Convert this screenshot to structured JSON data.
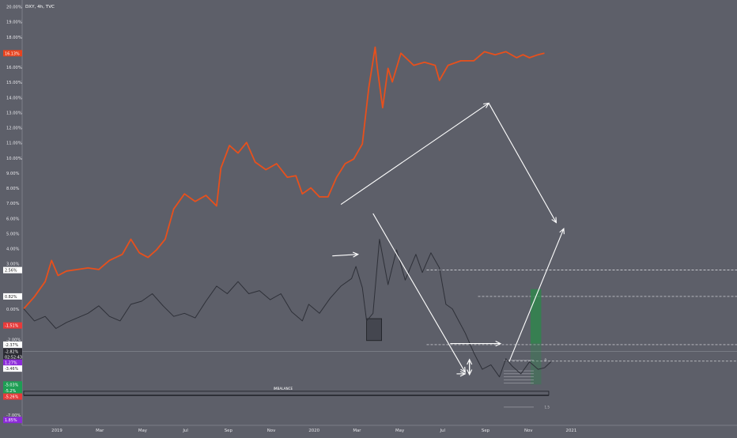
{
  "header": {
    "symbol_label": "DXY, 4h, TVC"
  },
  "chart_data": {
    "type": "line",
    "title": "DXY, 4h, TVC",
    "yunit": "%",
    "ylim": [
      -7.8,
      20.0
    ],
    "y_ticks": [
      20,
      19,
      18,
      17,
      16,
      15,
      14,
      13,
      12,
      11,
      10,
      9,
      8,
      7,
      6,
      5,
      4,
      3,
      0,
      -1,
      -2,
      -3,
      -4,
      -5,
      -7
    ],
    "y_tick_labels": [
      "20.00%",
      "19.00%",
      "18.00%",
      "17.00%",
      "16.00%",
      "15.00%",
      "14.00%",
      "13.00%",
      "12.00%",
      "11.00%",
      "10.00%",
      "9.00%",
      "8.00%",
      "7.00%",
      "6.00%",
      "5.00%",
      "4.00%",
      "3.00%",
      "0.00%",
      "-1.00%",
      "-2.00%",
      "-3.00%",
      "-4.00%",
      "-5.00%",
      "-7.00%"
    ],
    "x_ticks": [
      "2019",
      "Mar",
      "May",
      "Jul",
      "Sep",
      "Nov",
      "2020",
      "Mar",
      "May",
      "Jul",
      "Sep",
      "Nov",
      "2021"
    ],
    "x_tick_positions": [
      1.55,
      3.55,
      5.55,
      7.55,
      9.55,
      11.55,
      13.55,
      15.55,
      17.55,
      19.55,
      21.55,
      23.55,
      25.55
    ],
    "xlim": [
      0,
      33.5
    ],
    "price_badges": [
      {
        "label": "16.13%",
        "y": 16.9,
        "color": "#e8431e"
      },
      {
        "label": "2.56%",
        "y": 2.56,
        "color": "#ffffff"
      },
      {
        "label": "0.82%",
        "y": 0.82,
        "color": "#ffffff"
      },
      {
        "label": "-1.51%",
        "y": -1.1,
        "color": "#e83a3a"
      },
      {
        "label": "-2.37%",
        "y": -2.37,
        "color": "#ffffff"
      },
      {
        "label": "-2.82%",
        "y": -2.82,
        "color": "#2b2b33"
      },
      {
        "label": "02:52:43",
        "y": -3.18,
        "color": "#2b2b33"
      },
      {
        "label": "1.27%",
        "y": -3.55,
        "color": "#8c2bd9"
      },
      {
        "label": "-3.46%",
        "y": -3.95,
        "color": "#ffffff"
      },
      {
        "label": "-5.03%",
        "y": -5.0,
        "color": "#1e9e54"
      },
      {
        "label": "-5.2%",
        "y": -5.4,
        "color": "#1e9e54"
      },
      {
        "label": "-5.26%",
        "y": -5.8,
        "color": "#e83a3a"
      },
      {
        "label": "1.85%",
        "y": -7.35,
        "color": "#8c2bd9"
      }
    ],
    "series": [
      {
        "color": "#e8501c",
        "points": [
          [
            0.0,
            0.0
          ],
          [
            0.5,
            0.8
          ],
          [
            1.0,
            1.8
          ],
          [
            1.3,
            3.2
          ],
          [
            1.6,
            2.2
          ],
          [
            2.0,
            2.5
          ],
          [
            2.5,
            2.6
          ],
          [
            3.0,
            2.7
          ],
          [
            3.5,
            2.6
          ],
          [
            4.0,
            3.2
          ],
          [
            4.6,
            3.6
          ],
          [
            5.0,
            4.6
          ],
          [
            5.4,
            3.7
          ],
          [
            5.8,
            3.4
          ],
          [
            6.2,
            3.9
          ],
          [
            6.6,
            4.6
          ],
          [
            7.0,
            6.6
          ],
          [
            7.5,
            7.6
          ],
          [
            8.0,
            7.1
          ],
          [
            8.5,
            7.5
          ],
          [
            9.0,
            6.8
          ],
          [
            9.2,
            9.3
          ],
          [
            9.6,
            10.8
          ],
          [
            10.0,
            10.3
          ],
          [
            10.4,
            11.0
          ],
          [
            10.8,
            9.7
          ],
          [
            11.3,
            9.2
          ],
          [
            11.8,
            9.6
          ],
          [
            12.3,
            8.7
          ],
          [
            12.7,
            8.8
          ],
          [
            13.0,
            7.6
          ],
          [
            13.4,
            8.0
          ],
          [
            13.8,
            7.4
          ],
          [
            14.2,
            7.4
          ],
          [
            14.6,
            8.7
          ],
          [
            15.0,
            9.6
          ],
          [
            15.4,
            9.9
          ],
          [
            15.8,
            10.9
          ],
          [
            16.1,
            14.6
          ],
          [
            16.4,
            17.3
          ],
          [
            16.5,
            15.9
          ],
          [
            16.75,
            13.3
          ],
          [
            17.0,
            15.9
          ],
          [
            17.2,
            15.0
          ],
          [
            17.6,
            16.9
          ],
          [
            18.2,
            16.1
          ],
          [
            18.7,
            16.3
          ],
          [
            19.2,
            16.1
          ],
          [
            19.4,
            15.1
          ],
          [
            19.8,
            16.1
          ],
          [
            20.4,
            16.4
          ],
          [
            21.0,
            16.4
          ],
          [
            21.5,
            17.0
          ],
          [
            22.0,
            16.8
          ],
          [
            22.5,
            17.0
          ],
          [
            23.0,
            16.6
          ],
          [
            23.3,
            16.8
          ],
          [
            23.6,
            16.6
          ],
          [
            24.0,
            16.8
          ],
          [
            24.3,
            16.9
          ]
        ]
      },
      {
        "color": "#2e3038",
        "points": [
          [
            0.0,
            0.0
          ],
          [
            0.5,
            -0.8
          ],
          [
            1.0,
            -0.5
          ],
          [
            1.5,
            -1.3
          ],
          [
            2.0,
            -0.9
          ],
          [
            2.5,
            -0.6
          ],
          [
            3.0,
            -0.3
          ],
          [
            3.5,
            0.2
          ],
          [
            4.0,
            -0.5
          ],
          [
            4.5,
            -0.8
          ],
          [
            5.0,
            0.3
          ],
          [
            5.5,
            0.5
          ],
          [
            6.0,
            1.0
          ],
          [
            6.5,
            0.2
          ],
          [
            7.0,
            -0.5
          ],
          [
            7.5,
            -0.3
          ],
          [
            8.0,
            -0.6
          ],
          [
            8.5,
            0.5
          ],
          [
            9.0,
            1.5
          ],
          [
            9.5,
            1.0
          ],
          [
            10.0,
            1.8
          ],
          [
            10.5,
            1.0
          ],
          [
            11.0,
            1.2
          ],
          [
            11.5,
            0.6
          ],
          [
            12.0,
            1.0
          ],
          [
            12.5,
            -0.2
          ],
          [
            13.0,
            -0.8
          ],
          [
            13.3,
            0.3
          ],
          [
            13.8,
            -0.3
          ],
          [
            14.3,
            0.7
          ],
          [
            14.8,
            1.5
          ],
          [
            15.3,
            2.0
          ],
          [
            15.5,
            2.8
          ],
          [
            15.8,
            1.4
          ],
          [
            16.0,
            -0.8
          ],
          [
            16.3,
            -0.3
          ],
          [
            16.6,
            4.6
          ],
          [
            17.0,
            1.6
          ],
          [
            17.4,
            3.9
          ],
          [
            17.8,
            1.9
          ],
          [
            18.3,
            3.6
          ],
          [
            18.6,
            2.4
          ],
          [
            19.0,
            3.7
          ],
          [
            19.4,
            2.7
          ],
          [
            19.7,
            0.3
          ],
          [
            20.0,
            0.0
          ],
          [
            20.3,
            -0.8
          ],
          [
            20.6,
            -1.6
          ],
          [
            21.0,
            -2.9
          ],
          [
            21.4,
            -4.0
          ],
          [
            21.8,
            -3.7
          ],
          [
            22.2,
            -4.5
          ],
          [
            22.5,
            -3.3
          ],
          [
            22.8,
            -3.8
          ],
          [
            23.2,
            -4.3
          ],
          [
            23.6,
            -3.5
          ],
          [
            24.0,
            -4.0
          ],
          [
            24.3,
            -3.9
          ],
          [
            24.6,
            -3.5
          ]
        ]
      }
    ],
    "annotations": {
      "box_text": "IMBALANCE",
      "fib_labels": [
        "0",
        "1.5"
      ]
    }
  }
}
